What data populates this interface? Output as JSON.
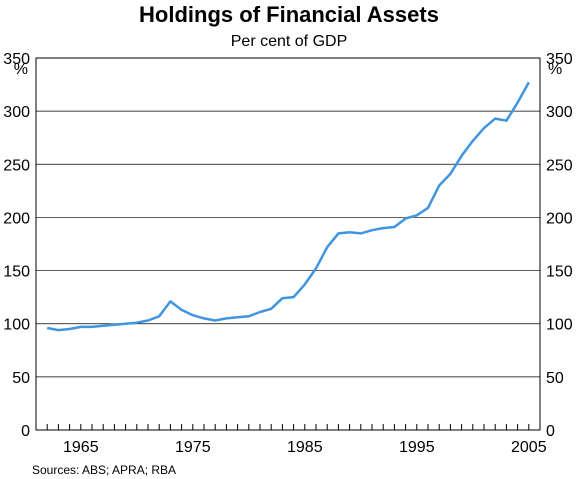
{
  "chart_data": {
    "type": "line",
    "title": "Holdings of Financial Assets",
    "subtitle": "Per cent of GDP",
    "ylabel": "%",
    "ylim": [
      0,
      350
    ],
    "yticks": [
      0,
      50,
      100,
      150,
      200,
      250,
      300,
      350
    ],
    "xlim": [
      1961,
      2006
    ],
    "xticks": [
      1965,
      1975,
      1985,
      1995,
      2005
    ],
    "grid": true,
    "source": "Sources: ABS; APRA; RBA",
    "line_color": "#3f95e0",
    "x": [
      1962,
      1963,
      1964,
      1965,
      1966,
      1967,
      1968,
      1969,
      1970,
      1971,
      1972,
      1973,
      1974,
      1975,
      1976,
      1977,
      1978,
      1979,
      1980,
      1981,
      1982,
      1983,
      1984,
      1985,
      1986,
      1987,
      1988,
      1989,
      1990,
      1991,
      1992,
      1993,
      1994,
      1995,
      1996,
      1997,
      1998,
      1999,
      2000,
      2001,
      2002,
      2003,
      2004,
      2005
    ],
    "series": [
      {
        "values": [
          96,
          94,
          95,
          97,
          97,
          98,
          99,
          100,
          101,
          103,
          107,
          121,
          113,
          108,
          105,
          103,
          105,
          106,
          107,
          111,
          114,
          124,
          125,
          137,
          152,
          172,
          185,
          186,
          185,
          188,
          190,
          191,
          199,
          202,
          209,
          230,
          241,
          258,
          272,
          284,
          293,
          291,
          308,
          327
        ]
      }
    ]
  }
}
